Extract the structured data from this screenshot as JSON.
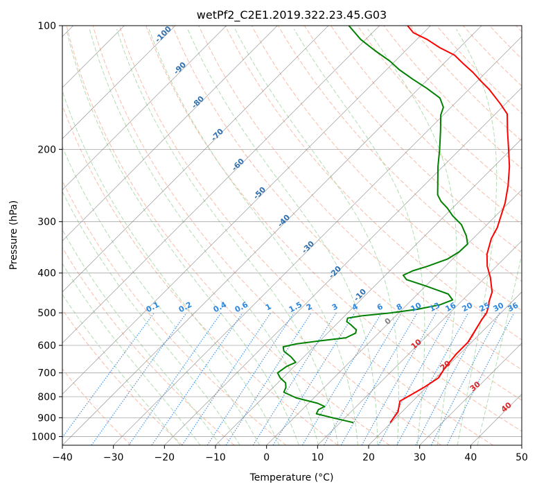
{
  "chart_data": {
    "type": "line",
    "title": "wetPf2_C2E1.2019.322.23.45.G03",
    "xlabel": "Temperature (°C)",
    "ylabel": "Pressure (hPa)",
    "xlim": [
      -40,
      50
    ],
    "ylim": [
      1050,
      100
    ],
    "y_scale": "log",
    "x_ticks": [
      -40,
      -30,
      -20,
      -10,
      0,
      10,
      20,
      30,
      40,
      50
    ],
    "y_ticks": [
      100,
      200,
      300,
      400,
      500,
      600,
      700,
      800,
      900,
      1000
    ],
    "grid": true,
    "skew": "45",
    "series": [
      {
        "color": "#ff0000",
        "points": [
          [
            19.8,
            925
          ],
          [
            19.2,
            870
          ],
          [
            17.5,
            820
          ],
          [
            18.5,
            790
          ],
          [
            19.5,
            760
          ],
          [
            20.5,
            720
          ],
          [
            19.8,
            680
          ],
          [
            19.3,
            630
          ],
          [
            19.3,
            590
          ],
          [
            18.6,
            560
          ],
          [
            17.6,
            520
          ],
          [
            17.2,
            500
          ],
          [
            16.2,
            480
          ],
          [
            15.5,
            470
          ],
          [
            14.2,
            445
          ],
          [
            11.0,
            410
          ],
          [
            8.2,
            385
          ],
          [
            5.8,
            360
          ],
          [
            3.6,
            330
          ],
          [
            2.6,
            310
          ],
          [
            1.0,
            290
          ],
          [
            -0.7,
            270
          ],
          [
            -3.5,
            245
          ],
          [
            -7.0,
            220
          ],
          [
            -10.5,
            200
          ],
          [
            -14.4,
            180
          ],
          [
            -17.7,
            164
          ],
          [
            -21.0,
            155
          ],
          [
            -26.0,
            143
          ],
          [
            -29.5,
            136
          ],
          [
            -32.5,
            130
          ],
          [
            -36.0,
            124
          ],
          [
            -39.5,
            118
          ],
          [
            -44.0,
            113
          ],
          [
            -48.0,
            108
          ],
          [
            -52.0,
            104
          ],
          [
            -54.5,
            100
          ]
        ]
      },
      {
        "color": "#008000",
        "points": [
          [
            12.6,
            925
          ],
          [
            7.5,
            900
          ],
          [
            3.6,
            880
          ],
          [
            3.2,
            860
          ],
          [
            3.8,
            845
          ],
          [
            1.8,
            830
          ],
          [
            -3.5,
            805
          ],
          [
            -7.0,
            780
          ],
          [
            -7.5,
            760
          ],
          [
            -8.5,
            740
          ],
          [
            -10.5,
            720
          ],
          [
            -12.0,
            700
          ],
          [
            -11.5,
            675
          ],
          [
            -10.5,
            660
          ],
          [
            -12.5,
            640
          ],
          [
            -15.0,
            620
          ],
          [
            -16.0,
            605
          ],
          [
            -14.0,
            595
          ],
          [
            -10.0,
            585
          ],
          [
            -5.5,
            575
          ],
          [
            -4.5,
            560
          ],
          [
            -5.0,
            550
          ],
          [
            -7.0,
            535
          ],
          [
            -8.5,
            525
          ],
          [
            -9.0,
            515
          ],
          [
            -6.5,
            508
          ],
          [
            -1.5,
            500
          ],
          [
            3.0,
            490
          ],
          [
            6.5,
            478
          ],
          [
            8.0,
            465
          ],
          [
            6.0,
            450
          ],
          [
            0.0,
            430
          ],
          [
            -5.0,
            415
          ],
          [
            -6.5,
            405
          ],
          [
            -5.5,
            395
          ],
          [
            -3.5,
            385
          ],
          [
            -1.0,
            370
          ],
          [
            -0.1,
            355
          ],
          [
            0.0,
            340
          ],
          [
            -1.8,
            325
          ],
          [
            -5.0,
            305
          ],
          [
            -8.5,
            290
          ],
          [
            -11.0,
            278
          ],
          [
            -13.5,
            268
          ],
          [
            -15.5,
            258
          ],
          [
            -18.0,
            240
          ],
          [
            -21.0,
            220
          ],
          [
            -24.0,
            200
          ],
          [
            -27.5,
            180
          ],
          [
            -30.5,
            165
          ],
          [
            -31.5,
            158
          ],
          [
            -34.0,
            150
          ],
          [
            -38.5,
            142
          ],
          [
            -43.0,
            135
          ],
          [
            -47.5,
            128
          ],
          [
            -51.0,
            122
          ],
          [
            -56.0,
            115
          ],
          [
            -61.0,
            108
          ],
          [
            -66.0,
            100
          ]
        ]
      }
    ],
    "temperature_line_labels": {
      "color": "#2f6fad",
      "values": [
        "-100",
        "-90",
        "-80",
        "-70",
        "-60",
        "-50",
        "-40",
        "-30",
        "-20",
        "-10"
      ]
    },
    "mixing_ratio_labels": {
      "color": "#2a86e0",
      "values": [
        "0.1",
        "0.2",
        "0.4",
        "0.6",
        "1",
        "1.5",
        "2",
        "3",
        "4",
        "6",
        "8",
        "10",
        "13",
        "16",
        "20",
        "25",
        "30",
        "36"
      ]
    },
    "dry_adiabat_labels": {
      "values": [
        {
          "text": "0",
          "color": "#808080"
        },
        {
          "text": "10",
          "color": "#d62728"
        },
        {
          "text": "20",
          "color": "#d62728"
        },
        {
          "text": "30",
          "color": "#d62728"
        },
        {
          "text": "40",
          "color": "#d62728"
        }
      ]
    },
    "colors": {
      "dry_adiabats": "#f5a58a",
      "moist_adiabats": "#9fd39f",
      "isotherms": "#808080",
      "mixing_ratio": "#2a86e0",
      "ice_line": "#d8c6a8"
    }
  }
}
